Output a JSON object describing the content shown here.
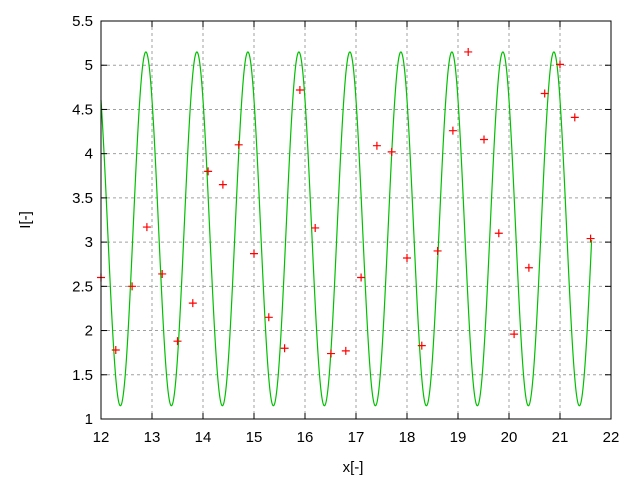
{
  "chart_data": {
    "type": "line",
    "title": "",
    "xlabel": "x[-]",
    "ylabel": "I[-]",
    "xlim": [
      12,
      22
    ],
    "ylim": [
      1,
      5.5
    ],
    "xticks": [
      "12",
      "13",
      "14",
      "15",
      "16",
      "17",
      "18",
      "19",
      "20",
      "21",
      "22"
    ],
    "yticks": [
      "1",
      "1.5",
      "2",
      "2.5",
      "3",
      "3.5",
      "4",
      "4.5",
      "5",
      "5.5"
    ],
    "grid": true,
    "legend": "none",
    "series": [
      {
        "kind": "line",
        "color": "#00c000",
        "function": "3.15 + 2*cos(2*pi*(x - 12.88))",
        "x_range": [
          12,
          21.62
        ]
      },
      {
        "kind": "scatter",
        "marker": "plus",
        "color": "#ff0000",
        "points": [
          [
            12.0,
            2.6
          ],
          [
            12.29,
            1.78
          ],
          [
            12.61,
            2.5
          ],
          [
            12.9,
            3.17
          ],
          [
            13.2,
            2.64
          ],
          [
            13.5,
            1.88
          ],
          [
            13.8,
            2.31
          ],
          [
            14.1,
            3.8
          ],
          [
            14.39,
            3.65
          ],
          [
            14.7,
            4.1
          ],
          [
            15.0,
            2.87
          ],
          [
            15.29,
            2.15
          ],
          [
            15.6,
            1.8
          ],
          [
            15.9,
            4.72
          ],
          [
            16.2,
            3.16
          ],
          [
            16.51,
            1.74
          ],
          [
            16.8,
            1.77
          ],
          [
            17.1,
            2.6
          ],
          [
            17.41,
            4.09
          ],
          [
            17.7,
            4.02
          ],
          [
            18.0,
            2.82
          ],
          [
            18.29,
            1.83
          ],
          [
            18.6,
            2.9
          ],
          [
            18.9,
            4.26
          ],
          [
            19.2,
            5.15
          ],
          [
            19.51,
            4.16
          ],
          [
            19.8,
            3.1
          ],
          [
            20.1,
            1.96
          ],
          [
            20.39,
            2.71
          ],
          [
            20.7,
            4.68
          ],
          [
            21.0,
            5.01
          ],
          [
            21.29,
            4.41
          ],
          [
            21.6,
            3.04
          ]
        ]
      }
    ]
  }
}
